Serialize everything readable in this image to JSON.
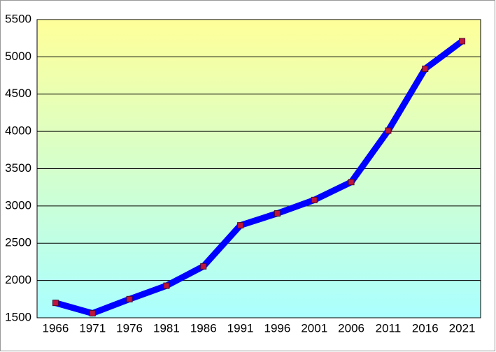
{
  "chart_data": {
    "type": "line",
    "categories": [
      "1966",
      "1971",
      "1976",
      "1981",
      "1986",
      "1991",
      "1996",
      "2001",
      "2006",
      "2011",
      "2016",
      "2021"
    ],
    "series": [
      {
        "color": "#0000ff",
        "marker_color": "#c0143c",
        "values": [
          1700,
          1560,
          1750,
          1930,
          2190,
          2740,
          2900,
          3080,
          3320,
          4010,
          4840,
          5210
        ]
      }
    ],
    "ylim": [
      1500,
      5500
    ],
    "yticks": [
      1500,
      2000,
      2500,
      3000,
      3500,
      4000,
      4500,
      5000,
      5500
    ],
    "grid": true
  }
}
